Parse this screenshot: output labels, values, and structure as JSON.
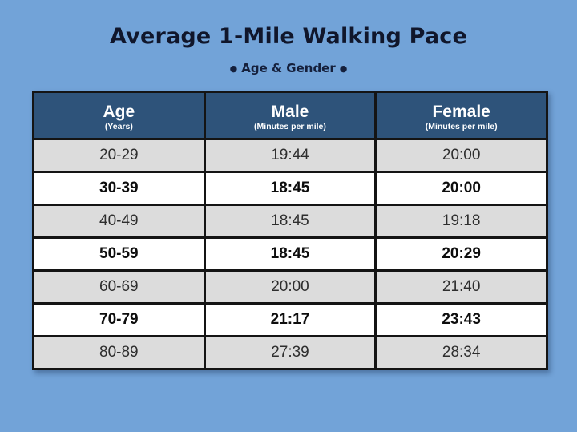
{
  "header": {
    "title": "Average 1-Mile Walking Pace",
    "subtitle": "Age & Gender",
    "bullet": "●"
  },
  "table": {
    "columns": [
      {
        "label": "Age",
        "unit": "(Years)"
      },
      {
        "label": "Male",
        "unit": "(Minutes per mile)"
      },
      {
        "label": "Female",
        "unit": "(Minutes per mile)"
      }
    ],
    "rows": [
      {
        "age": "20-29",
        "male": "19:44",
        "female": "20:00",
        "emphasis": false
      },
      {
        "age": "30-39",
        "male": "18:45",
        "female": "20:00",
        "emphasis": true
      },
      {
        "age": "40-49",
        "male": "18:45",
        "female": "19:18",
        "emphasis": false
      },
      {
        "age": "50-59",
        "male": "18:45",
        "female": "20:29",
        "emphasis": true
      },
      {
        "age": "60-69",
        "male": "20:00",
        "female": "21:40",
        "emphasis": false
      },
      {
        "age": "70-79",
        "male": "21:17",
        "female": "23:43",
        "emphasis": true
      },
      {
        "age": "80-89",
        "male": "27:39",
        "female": "28:34",
        "emphasis": false
      }
    ]
  },
  "colors": {
    "background": "#72a3d8",
    "header_bg": "#2e537a",
    "header_text": "#ffffff",
    "row_gray": "#dcdcdc",
    "row_white": "#ffffff",
    "border": "#141414",
    "title_text": "#10162b"
  },
  "chart_data": {
    "type": "table",
    "title": "Average 1-Mile Walking Pace",
    "subtitle": "Age & Gender",
    "columns": [
      "Age (Years)",
      "Male (Minutes per mile)",
      "Female (Minutes per mile)"
    ],
    "rows": [
      [
        "20-29",
        "19:44",
        "20:00"
      ],
      [
        "30-39",
        "18:45",
        "20:00"
      ],
      [
        "40-49",
        "18:45",
        "19:18"
      ],
      [
        "50-59",
        "18:45",
        "20:29"
      ],
      [
        "60-69",
        "20:00",
        "21:40"
      ],
      [
        "70-79",
        "21:17",
        "23:43"
      ],
      [
        "80-89",
        "27:39",
        "28:34"
      ]
    ],
    "layout": {
      "header_style": "dark-blue",
      "alternating_rows": "gray/white-bold",
      "grid": true
    }
  }
}
